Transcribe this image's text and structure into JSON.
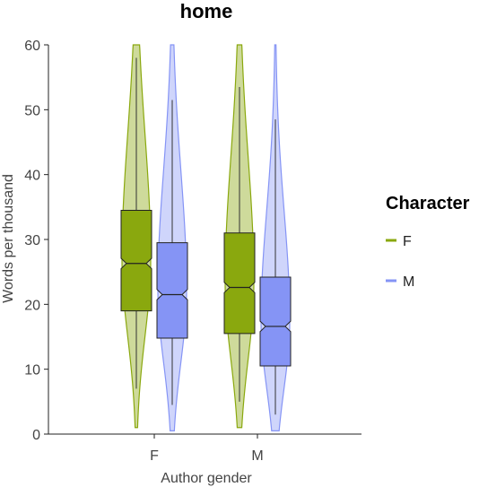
{
  "chart_data": {
    "type": "violin-box",
    "title": "home",
    "xlabel": "Author gender",
    "ylabel": "Words per thousand",
    "ylim": [
      0,
      60
    ],
    "yticks": [
      0,
      10,
      20,
      30,
      40,
      50,
      60
    ],
    "categories": [
      "F",
      "M"
    ],
    "legend": {
      "title": "Character",
      "position": "right"
    },
    "series": [
      {
        "name": "F",
        "color": "#8aa80e",
        "violin_fill": "#c5d48a",
        "stats": [
          {
            "category": "F",
            "min": 1,
            "max": 62,
            "whisker_low": 7,
            "whisker_high": 58,
            "q1": 19,
            "median": 26.3,
            "q3": 34.5,
            "notch_low": 25.5,
            "notch_high": 27.1
          },
          {
            "category": "M",
            "min": 1,
            "max": 62,
            "whisker_low": 5,
            "whisker_high": 53.5,
            "q1": 15.5,
            "median": 22.6,
            "q3": 31,
            "notch_low": 21.8,
            "notch_high": 23.4
          }
        ]
      },
      {
        "name": "M",
        "color": "#8594f5",
        "violin_fill": "#c7cefa",
        "stats": [
          {
            "category": "F",
            "min": 0.5,
            "max": 62,
            "whisker_low": 4.5,
            "whisker_high": 51.5,
            "q1": 14.8,
            "median": 21.5,
            "q3": 29.5,
            "notch_low": 20.7,
            "notch_high": 22.3
          },
          {
            "category": "M",
            "min": 0.5,
            "max": 62,
            "whisker_low": 3,
            "whisker_high": 48.5,
            "q1": 10.5,
            "median": 16.6,
            "q3": 24.2,
            "notch_low": 15.8,
            "notch_high": 17.4
          }
        ]
      }
    ]
  }
}
